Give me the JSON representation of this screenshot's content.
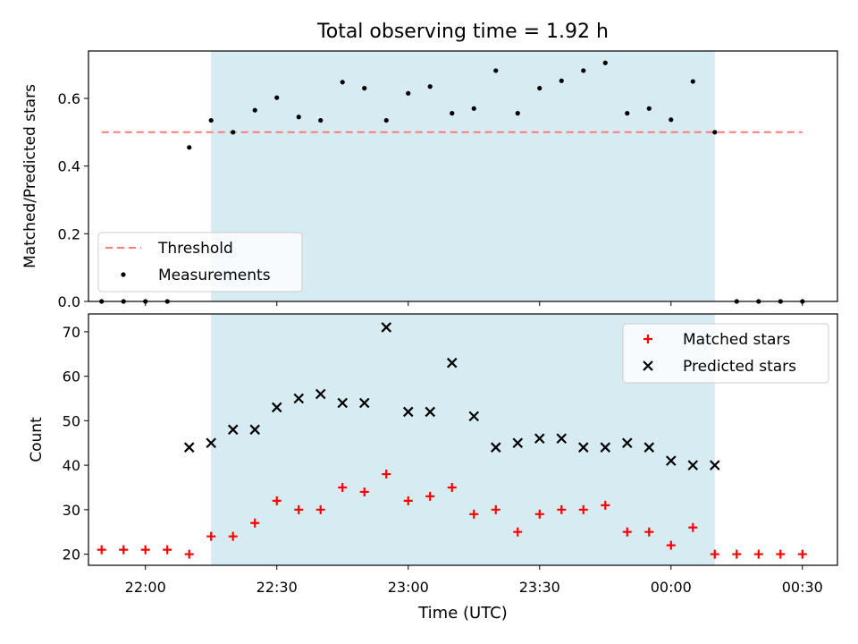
{
  "chart_data": {
    "title": "Total observing time = 1.92 h",
    "xlabel": "Time (UTC)",
    "x_ticks": [
      "22:00",
      "22:30",
      "23:00",
      "23:30",
      "00:00",
      "00:30"
    ],
    "x_range": [
      "21:47",
      "00:38"
    ],
    "observing_window": [
      "22:15",
      "00:10"
    ],
    "observing_window_color": "#add8e6",
    "times": [
      "21:50",
      "21:55",
      "22:00",
      "22:05",
      "22:10",
      "22:15",
      "22:20",
      "22:25",
      "22:30",
      "22:35",
      "22:40",
      "22:45",
      "22:50",
      "22:55",
      "23:00",
      "23:05",
      "23:10",
      "23:15",
      "23:20",
      "23:25",
      "23:30",
      "23:35",
      "23:40",
      "23:45",
      "23:50",
      "23:55",
      "00:00",
      "00:05",
      "00:10",
      "00:15",
      "00:20",
      "00:25",
      "00:30"
    ],
    "panels": [
      {
        "type": "scatter",
        "ylabel": "Matched/Predicted stars",
        "ylim": [
          0,
          0.74
        ],
        "yticks": [
          "0.0",
          "0.2",
          "0.4",
          "0.6"
        ],
        "legend_position": "lower-left",
        "threshold": {
          "name": "Threshold",
          "value": 0.5,
          "color": "#ff7a7a",
          "from": "21:50",
          "to": "00:30"
        },
        "series": [
          {
            "name": "Measurements",
            "color": "#000000",
            "marker": "dot",
            "values": [
              0.0,
              0.0,
              0.0,
              0.0,
              0.455,
              0.535,
              0.5,
              0.565,
              0.602,
              0.545,
              0.535,
              0.648,
              0.63,
              0.535,
              0.615,
              0.635,
              0.556,
              0.57,
              0.682,
              0.556,
              0.63,
              0.652,
              0.682,
              0.705,
              0.556,
              0.57,
              0.537,
              0.65,
              0.5,
              0.0,
              0.0,
              0.0,
              0.0
            ]
          }
        ]
      },
      {
        "type": "scatter",
        "ylabel": "Count",
        "ylim": [
          17.5,
          74
        ],
        "yticks": [
          "20",
          "30",
          "40",
          "50",
          "60",
          "70"
        ],
        "legend_position": "top-right",
        "series": [
          {
            "name": "Matched stars",
            "color": "#ff0000",
            "marker": "plus",
            "values": [
              21,
              21,
              21,
              21,
              20,
              24,
              24,
              27,
              32,
              30,
              30,
              35,
              34,
              38,
              32,
              33,
              35,
              29,
              30,
              25,
              29,
              30,
              30,
              31,
              25,
              25,
              22,
              26,
              20,
              20,
              20,
              20,
              20
            ]
          },
          {
            "name": "Predicted stars",
            "color": "#000000",
            "marker": "x",
            "values": [
              null,
              null,
              null,
              null,
              44,
              45,
              48,
              48,
              53,
              55,
              56,
              54,
              54,
              71,
              52,
              52,
              63,
              51,
              44,
              45,
              46,
              46,
              44,
              44,
              45,
              44,
              41,
              40,
              40,
              null,
              null,
              null,
              null
            ]
          }
        ]
      }
    ]
  }
}
